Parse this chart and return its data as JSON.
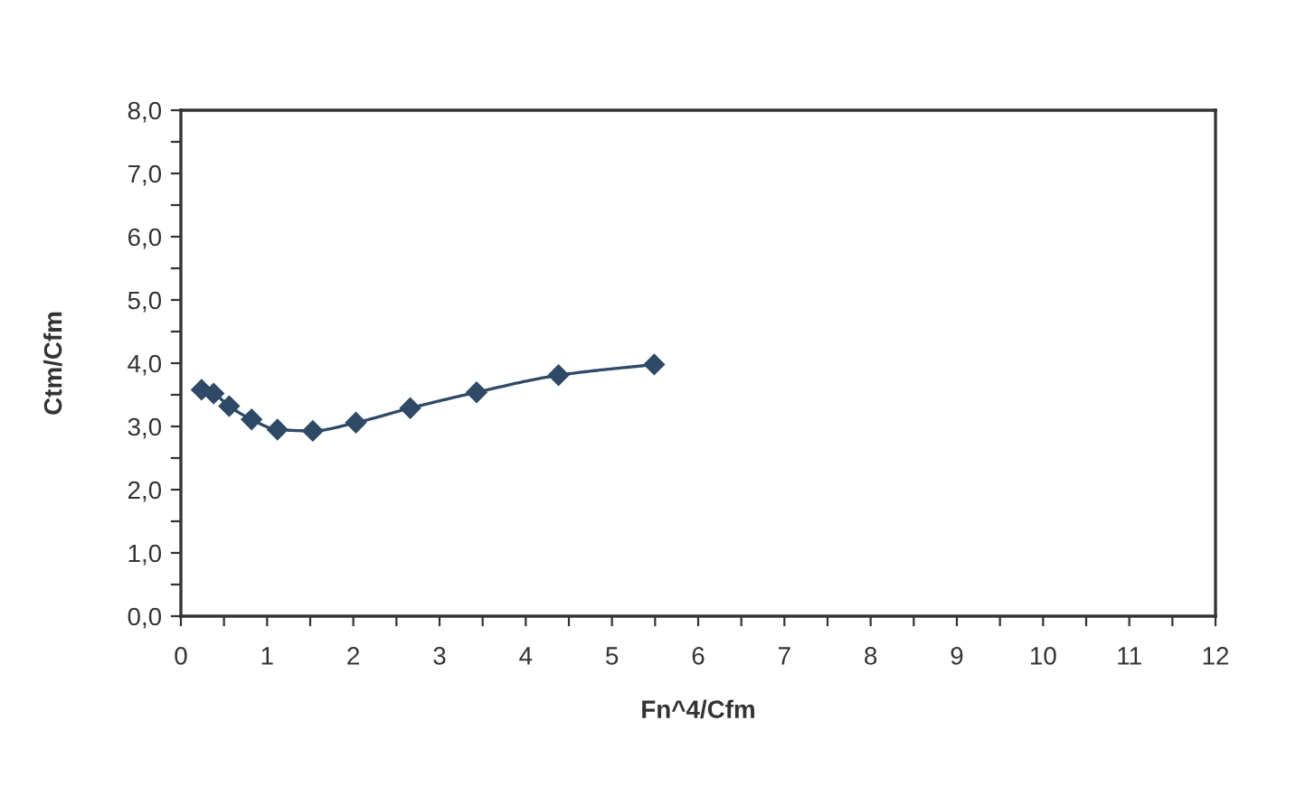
{
  "chart_data": {
    "type": "line",
    "xlabel": "Fn^4/Cfm",
    "ylabel": "Ctm/Cfm",
    "series": [
      {
        "color": "#2e4a66",
        "x": [
          0.24,
          0.38,
          0.56,
          0.82,
          1.12,
          1.53,
          2.03,
          2.66,
          3.43,
          4.38,
          5.49
        ],
        "values": [
          3.58,
          3.52,
          3.32,
          3.11,
          2.95,
          2.93,
          3.06,
          3.29,
          3.54,
          3.81,
          3.98
        ]
      }
    ],
    "marker": "diamond",
    "line_style": "solid",
    "grid": false,
    "xlim": [
      0,
      12
    ],
    "ylim": [
      0,
      8
    ],
    "xticks": [
      0,
      {
        "value": 0.5,
        "label": null
      },
      1,
      {
        "value": 1.5,
        "label": null
      },
      2,
      {
        "value": 2.5,
        "label": null
      },
      3,
      {
        "value": 3.5,
        "label": null
      },
      4,
      {
        "value": 4.5,
        "label": null
      },
      5,
      {
        "value": 5.5,
        "label": null
      },
      6,
      {
        "value": 6.5,
        "label": null
      },
      7,
      {
        "value": 7.5,
        "label": null
      },
      8,
      {
        "value": 8.5,
        "label": null
      },
      9,
      {
        "value": 9.5,
        "label": null
      },
      10,
      {
        "value": 10.5,
        "label": null
      },
      11,
      {
        "value": 11.5,
        "label": null
      },
      12
    ],
    "yticks": [
      {
        "value": 0,
        "label": "0,0"
      },
      {
        "value": 0.5,
        "label": null
      },
      {
        "value": 1,
        "label": "1,0"
      },
      {
        "value": 1.5,
        "label": null
      },
      {
        "value": 2,
        "label": "2,0"
      },
      {
        "value": 2.5,
        "label": null
      },
      {
        "value": 3,
        "label": "3,0"
      },
      {
        "value": 3.5,
        "label": null
      },
      {
        "value": 4,
        "label": "4,0"
      },
      {
        "value": 4.5,
        "label": null
      },
      {
        "value": 5,
        "label": "5,0"
      },
      {
        "value": 5.5,
        "label": null
      },
      {
        "value": 6,
        "label": "6,0"
      },
      {
        "value": 6.5,
        "label": null
      },
      {
        "value": 7,
        "label": "7,0"
      },
      {
        "value": 7.5,
        "label": null
      },
      {
        "value": 8,
        "label": "8,0"
      }
    ]
  }
}
